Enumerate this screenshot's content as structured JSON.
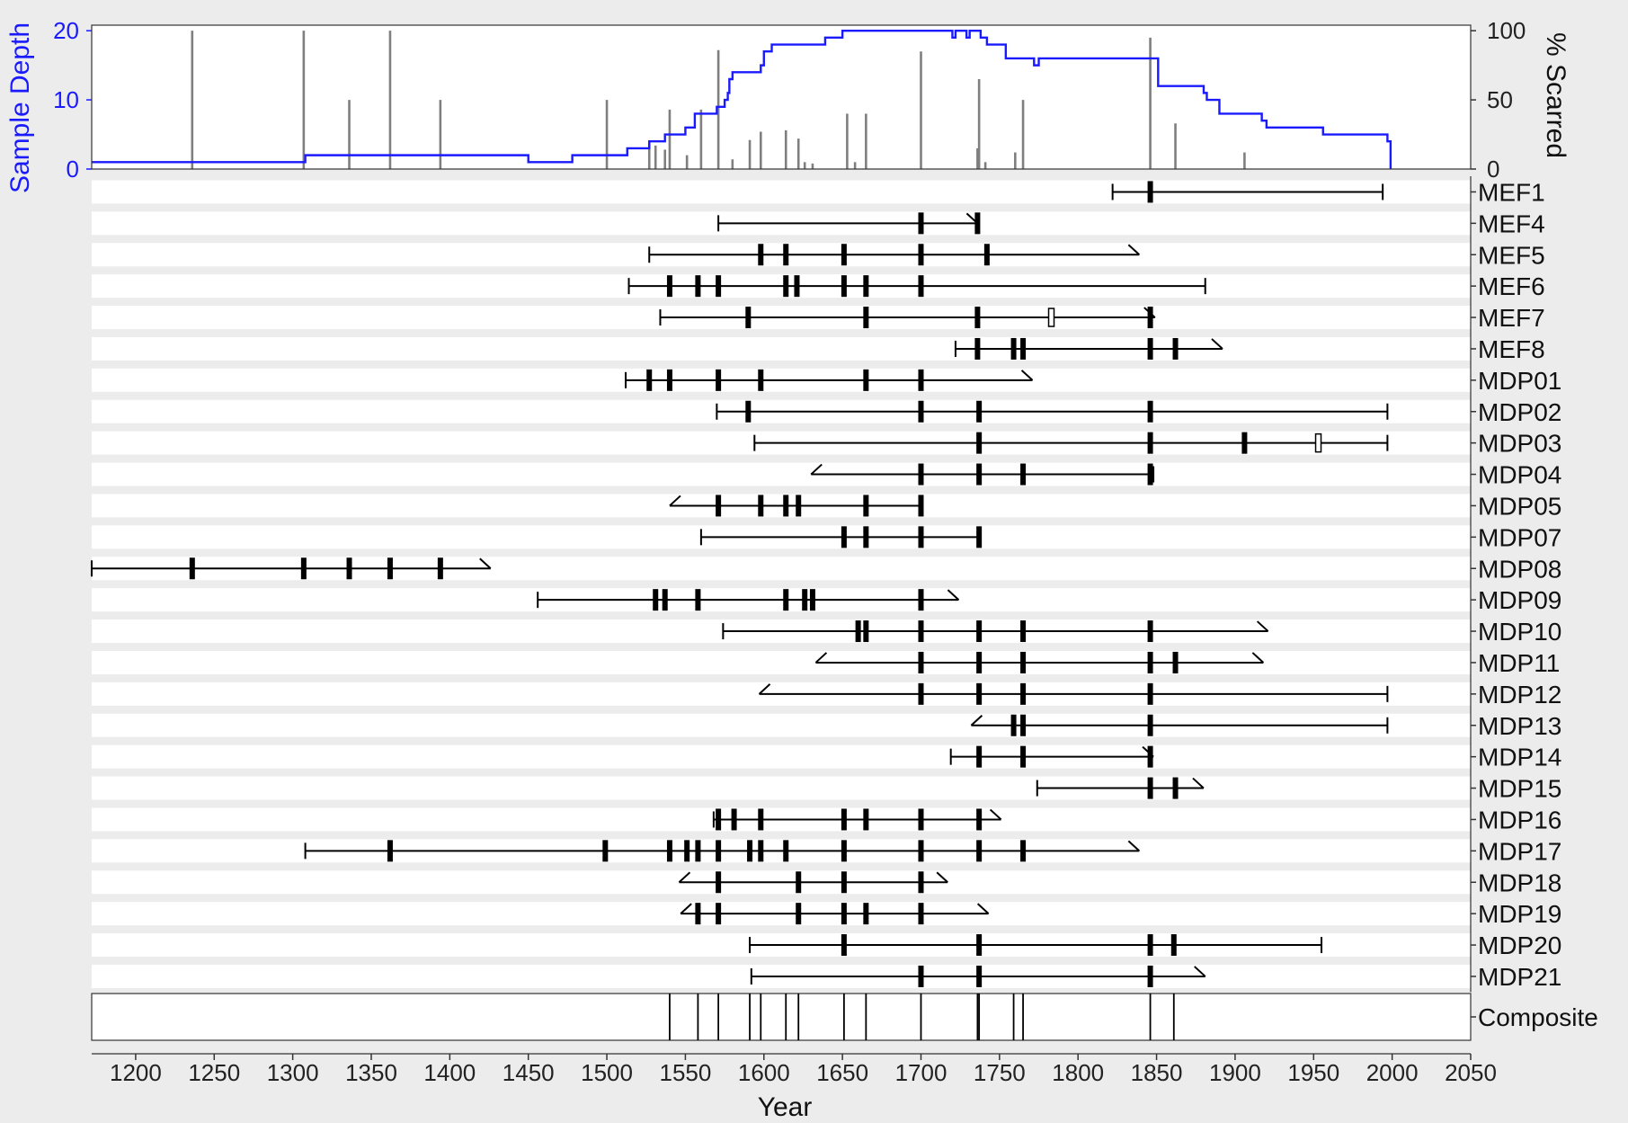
{
  "chart_data": {
    "type": "fire-history",
    "xlabel": "Year",
    "x_range": [
      1172,
      2050
    ],
    "x_ticks": [
      1200,
      1250,
      1300,
      1350,
      1400,
      1450,
      1500,
      1550,
      1600,
      1650,
      1700,
      1750,
      1800,
      1850,
      1900,
      1950,
      2000,
      2050
    ],
    "depth_axis": {
      "label": "Sample Depth",
      "ticks": [
        0,
        10,
        20
      ],
      "range": [
        0,
        20.8
      ],
      "color": "#1a1aff"
    },
    "scar_axis": {
      "label": "% Scarred",
      "ticks": [
        0,
        50,
        100
      ],
      "range": [
        0,
        104
      ]
    },
    "sample_depth": [
      [
        1172,
        1
      ],
      [
        1308,
        2
      ],
      [
        1450,
        1
      ],
      [
        1478,
        2
      ],
      [
        1513,
        3
      ],
      [
        1527,
        4
      ],
      [
        1537,
        5
      ],
      [
        1550,
        6
      ],
      [
        1556,
        8
      ],
      [
        1570,
        9
      ],
      [
        1575,
        10
      ],
      [
        1577,
        11
      ],
      [
        1578,
        13
      ],
      [
        1580,
        14
      ],
      [
        1590,
        14
      ],
      [
        1598,
        15
      ],
      [
        1600,
        17
      ],
      [
        1605,
        18
      ],
      [
        1630,
        18
      ],
      [
        1639,
        19
      ],
      [
        1650,
        20
      ],
      [
        1720,
        19
      ],
      [
        1722,
        20
      ],
      [
        1727,
        20
      ],
      [
        1729,
        19
      ],
      [
        1731,
        20
      ],
      [
        1735,
        20
      ],
      [
        1738,
        19
      ],
      [
        1742,
        18
      ],
      [
        1754,
        16
      ],
      [
        1772,
        15
      ],
      [
        1775,
        16
      ],
      [
        1830,
        16
      ],
      [
        1851,
        12
      ],
      [
        1880,
        11
      ],
      [
        1882,
        10
      ],
      [
        1890,
        8
      ],
      [
        1917,
        7
      ],
      [
        1920,
        6
      ],
      [
        1956,
        5
      ],
      [
        1975,
        5
      ],
      [
        1997,
        4
      ],
      [
        1999,
        0
      ]
    ],
    "percent_scarred": [
      [
        1236,
        100
      ],
      [
        1307,
        100
      ],
      [
        1336,
        50
      ],
      [
        1362,
        100
      ],
      [
        1394,
        50
      ],
      [
        1500,
        50
      ],
      [
        1527,
        19
      ],
      [
        1531,
        17
      ],
      [
        1537,
        14
      ],
      [
        1540,
        43
      ],
      [
        1551,
        10
      ],
      [
        1560,
        43
      ],
      [
        1571,
        86
      ],
      [
        1580,
        7
      ],
      [
        1591,
        21
      ],
      [
        1598,
        27
      ],
      [
        1614,
        28
      ],
      [
        1622,
        22
      ],
      [
        1626,
        5
      ],
      [
        1631,
        4
      ],
      [
        1653,
        40
      ],
      [
        1658,
        5
      ],
      [
        1665,
        40
      ],
      [
        1700,
        85
      ],
      [
        1736,
        15
      ],
      [
        1737,
        65
      ],
      [
        1741,
        5
      ],
      [
        1760,
        12
      ],
      [
        1765,
        50
      ],
      [
        1846,
        95
      ],
      [
        1862,
        33
      ],
      [
        1906,
        12
      ]
    ],
    "series": [
      {
        "name": "MEF1",
        "start": 1822,
        "end": 1994,
        "start_type": "pith",
        "end_type": "bark",
        "scars": [
          1846
        ],
        "other": []
      },
      {
        "name": "MEF4",
        "start": 1571,
        "end": 1736,
        "start_type": "pith",
        "end_type": "outer",
        "scars": [
          1700,
          1736
        ],
        "other": []
      },
      {
        "name": "MEF5",
        "start": 1527,
        "end": 1839,
        "start_type": "pith",
        "end_type": "outer",
        "scars": [
          1598,
          1614,
          1651,
          1700,
          1742
        ],
        "other": []
      },
      {
        "name": "MEF6",
        "start": 1514,
        "end": 1881,
        "start_type": "pith",
        "end_type": "bark",
        "scars": [
          1540,
          1558,
          1571,
          1614,
          1621,
          1651,
          1665,
          1700
        ],
        "other": []
      },
      {
        "name": "MEF7",
        "start": 1534,
        "end": 1849,
        "start_type": "pith",
        "end_type": "outer",
        "scars": [
          1590,
          1665,
          1736,
          1846
        ],
        "other": [
          1783
        ]
      },
      {
        "name": "MEF8",
        "start": 1722,
        "end": 1892,
        "start_type": "pith",
        "end_type": "outer",
        "scars": [
          1736,
          1759,
          1765,
          1846,
          1862
        ],
        "other": []
      },
      {
        "name": "MDP01",
        "start": 1512,
        "end": 1771,
        "start_type": "pith",
        "end_type": "outer",
        "scars": [
          1527,
          1540,
          1571,
          1598,
          1665,
          1700
        ],
        "other": []
      },
      {
        "name": "MDP02",
        "start": 1570,
        "end": 1997,
        "start_type": "pith",
        "end_type": "bark",
        "scars": [
          1590,
          1700,
          1737,
          1846
        ],
        "other": []
      },
      {
        "name": "MDP03",
        "start": 1594,
        "end": 1997,
        "start_type": "pith",
        "end_type": "bark",
        "scars": [
          1737,
          1846,
          1906
        ],
        "other": [
          1953
        ]
      },
      {
        "name": "MDP04",
        "start": 1630,
        "end": 1848,
        "start_type": "inner",
        "end_type": "bark",
        "scars": [
          1700,
          1737,
          1765,
          1846
        ],
        "other": []
      },
      {
        "name": "MDP05",
        "start": 1540,
        "end": 1700,
        "start_type": "inner",
        "end_type": "bark",
        "scars": [
          1571,
          1598,
          1614,
          1622,
          1665,
          1700
        ],
        "other": []
      },
      {
        "name": "MDP07",
        "start": 1560,
        "end": 1737,
        "start_type": "pith",
        "end_type": "bark",
        "scars": [
          1651,
          1665,
          1700,
          1737
        ],
        "other": []
      },
      {
        "name": "MDP08",
        "start": 1172,
        "end": 1426,
        "start_type": "pith",
        "end_type": "outer",
        "scars": [
          1236,
          1307,
          1336,
          1362,
          1394
        ],
        "other": []
      },
      {
        "name": "MDP09",
        "start": 1456,
        "end": 1724,
        "start_type": "pith",
        "end_type": "outer",
        "scars": [
          1531,
          1537,
          1558,
          1614,
          1626,
          1631,
          1700
        ],
        "other": []
      },
      {
        "name": "MDP10",
        "start": 1574,
        "end": 1921,
        "start_type": "pith",
        "end_type": "outer",
        "scars": [
          1660,
          1665,
          1700,
          1737,
          1765,
          1846
        ],
        "other": []
      },
      {
        "name": "MDP11",
        "start": 1633,
        "end": 1918,
        "start_type": "inner",
        "end_type": "outer",
        "scars": [
          1700,
          1737,
          1765,
          1846,
          1862
        ],
        "other": []
      },
      {
        "name": "MDP12",
        "start": 1597,
        "end": 1997,
        "start_type": "inner",
        "end_type": "bark",
        "scars": [
          1700,
          1737,
          1765,
          1846
        ],
        "other": []
      },
      {
        "name": "MDP13",
        "start": 1732,
        "end": 1997,
        "start_type": "inner",
        "end_type": "bark",
        "scars": [
          1759,
          1765,
          1846
        ],
        "other": []
      },
      {
        "name": "MDP14",
        "start": 1719,
        "end": 1848,
        "start_type": "pith",
        "end_type": "outer",
        "scars": [
          1737,
          1765,
          1846
        ],
        "other": []
      },
      {
        "name": "MDP15",
        "start": 1774,
        "end": 1880,
        "start_type": "pith",
        "end_type": "outer",
        "scars": [
          1846,
          1862
        ],
        "other": []
      },
      {
        "name": "MDP16",
        "start": 1568,
        "end": 1751,
        "start_type": "pith",
        "end_type": "outer",
        "scars": [
          1571,
          1581,
          1598,
          1651,
          1665,
          1700,
          1737
        ],
        "other": []
      },
      {
        "name": "MDP17",
        "start": 1308,
        "end": 1839,
        "start_type": "pith",
        "end_type": "outer",
        "scars": [
          1362,
          1499,
          1540,
          1551,
          1558,
          1571,
          1591,
          1598,
          1614,
          1651,
          1700,
          1737,
          1765
        ],
        "other": []
      },
      {
        "name": "MDP18",
        "start": 1546,
        "end": 1717,
        "start_type": "inner",
        "end_type": "outer",
        "scars": [
          1571,
          1622,
          1651,
          1700
        ],
        "other": []
      },
      {
        "name": "MDP19",
        "start": 1547,
        "end": 1743,
        "start_type": "inner",
        "end_type": "outer",
        "scars": [
          1558,
          1571,
          1622,
          1651,
          1665,
          1700
        ],
        "other": []
      },
      {
        "name": "MDP20",
        "start": 1591,
        "end": 1955,
        "start_type": "pith",
        "end_type": "bark",
        "scars": [
          1651,
          1737,
          1846,
          1861
        ],
        "other": []
      },
      {
        "name": "MDP21",
        "start": 1592,
        "end": 1881,
        "start_type": "pith",
        "end_type": "outer",
        "scars": [
          1700,
          1737,
          1846
        ],
        "other": []
      }
    ],
    "composite": {
      "name": "Composite",
      "events": [
        1540,
        1558,
        1571,
        1591,
        1598,
        1614,
        1622,
        1651,
        1665,
        1700,
        1736,
        1737,
        1759,
        1765,
        1846,
        1861
      ]
    }
  }
}
